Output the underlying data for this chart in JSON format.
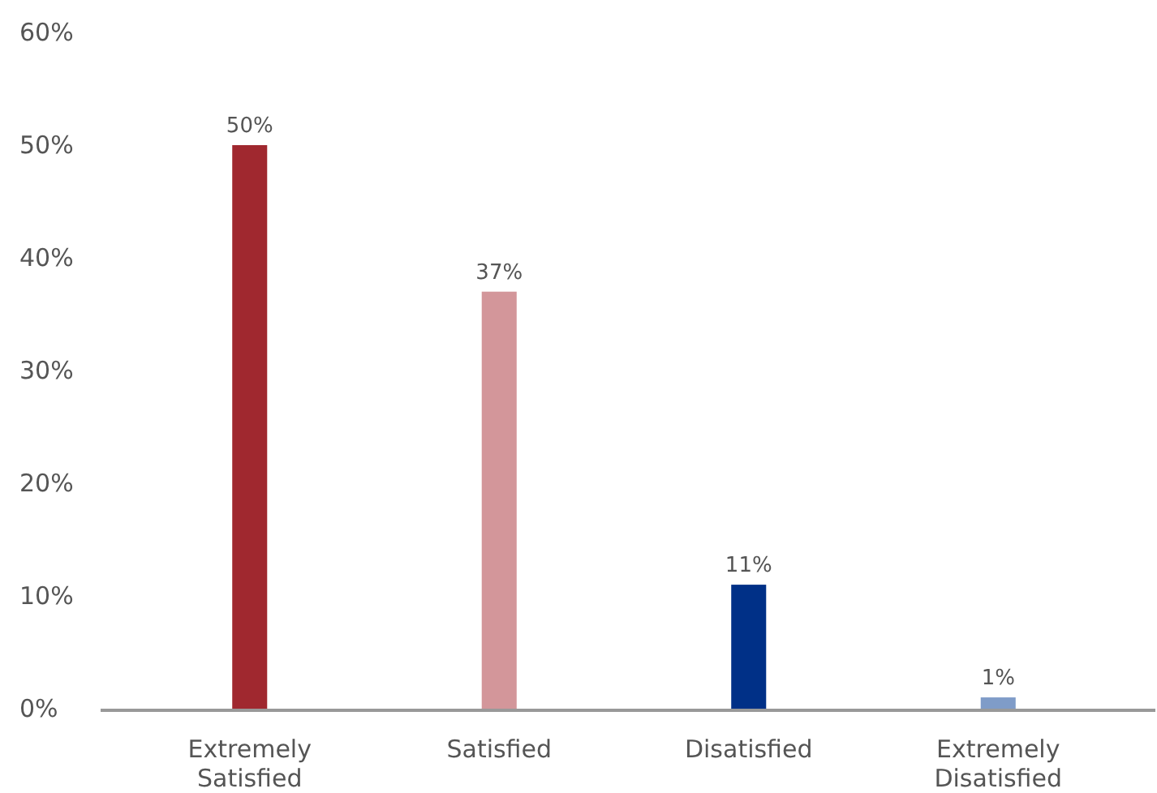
{
  "chart_data": {
    "type": "bar",
    "categories": [
      "Extremely Satisfied",
      "Satisfied",
      "Disatisfied",
      "Extremely Disatisfied"
    ],
    "values": [
      50,
      37,
      11,
      1
    ],
    "colors": [
      "#a0282f",
      "#d3969a",
      "#003087",
      "#7f9cc8"
    ],
    "value_labels": [
      "50%",
      "37%",
      "11%",
      "1%"
    ],
    "ylim": [
      0,
      60
    ],
    "yticks": [
      {
        "value": 0,
        "label": "0%"
      },
      {
        "value": 10,
        "label": "10%"
      },
      {
        "value": 20,
        "label": "20%"
      },
      {
        "value": 30,
        "label": "30%"
      },
      {
        "value": 40,
        "label": "40%"
      },
      {
        "value": 50,
        "label": "50%"
      },
      {
        "value": 60,
        "label": "60%"
      }
    ],
    "grid": false
  }
}
